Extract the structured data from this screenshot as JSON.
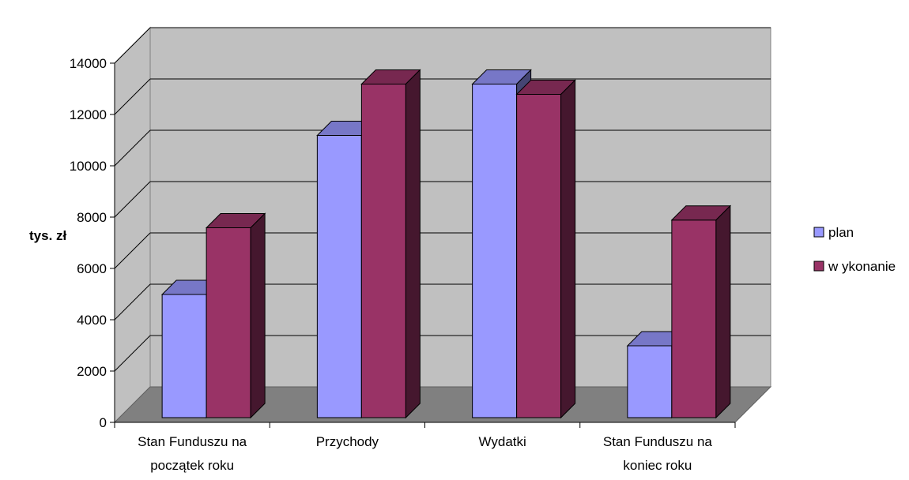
{
  "chart_data": {
    "type": "bar",
    "style": "3d-clustered-column",
    "title": "",
    "xlabel": "",
    "ylabel": "tys. zł",
    "ylim": [
      0,
      14000
    ],
    "yticks": [
      0,
      2000,
      4000,
      6000,
      8000,
      10000,
      12000,
      14000
    ],
    "categories": [
      [
        "Stan Funduszu na",
        "początek roku"
      ],
      [
        "Przychody"
      ],
      [
        "Wydatki"
      ],
      [
        "Stan Funduszu na",
        "koniec roku"
      ]
    ],
    "series": [
      {
        "name": "plan",
        "color": "#9999ff",
        "values": [
          4800,
          11000,
          13000,
          2800
        ]
      },
      {
        "name": "w ykonanie",
        "color": "#993366",
        "values": [
          7400,
          13000,
          12600,
          7700
        ]
      }
    ],
    "grid": true,
    "legend_position": "right",
    "colors": {
      "wall": "#c0c0c0",
      "floor": "#808080"
    }
  }
}
